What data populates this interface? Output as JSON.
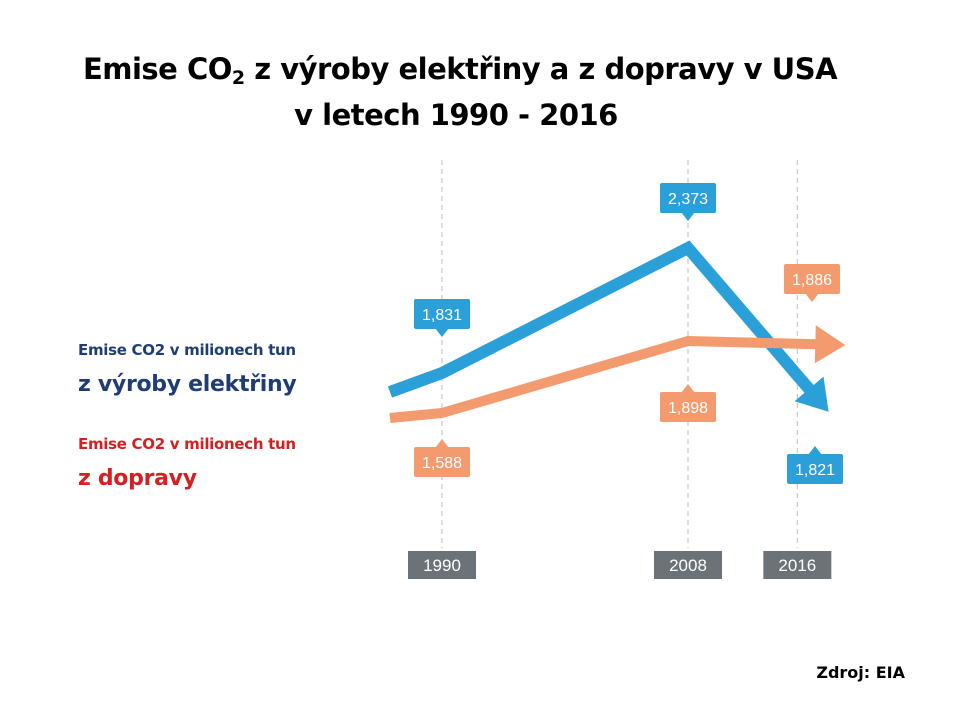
{
  "title": {
    "line1_prefix": "Emise CO",
    "line1_sub": "2",
    "line1_suffix": " z výroby elektřiny a z dopravy v USA",
    "line2": "v letech 1990 - 2016"
  },
  "legend": {
    "electricity_line1": "Emise CO2 v milionech tun",
    "electricity_line2": "z výroby elektřiny",
    "transport_line1": "Emise CO2 v milionech tun",
    "transport_line2": "z dopravy"
  },
  "source": "Zdroj: EIA",
  "colors": {
    "electricity": "#2a9fd8",
    "transport": "#f39a6e",
    "year_box": "#6b7378",
    "legend_electricity": "#1f3d73",
    "legend_transport": "#d42020"
  },
  "chart_data": {
    "type": "line",
    "x": [
      1990,
      2008,
      2016
    ],
    "x_tick_labels": [
      "1990",
      "2008",
      "2016"
    ],
    "series": [
      {
        "values": [
          1831,
          2373,
          1821
        ],
        "labels": [
          "1,831",
          "2,373",
          "1,821"
        ],
        "color": "#2a9fd8"
      },
      {
        "values": [
          1588,
          1898,
          1886
        ],
        "labels": [
          "1,588",
          "1,898",
          "1,886"
        ],
        "color": "#f39a6e"
      }
    ],
    "ylim": [
      1500,
      2450
    ],
    "grid": "vertical dashed at data years",
    "legend": "left"
  }
}
